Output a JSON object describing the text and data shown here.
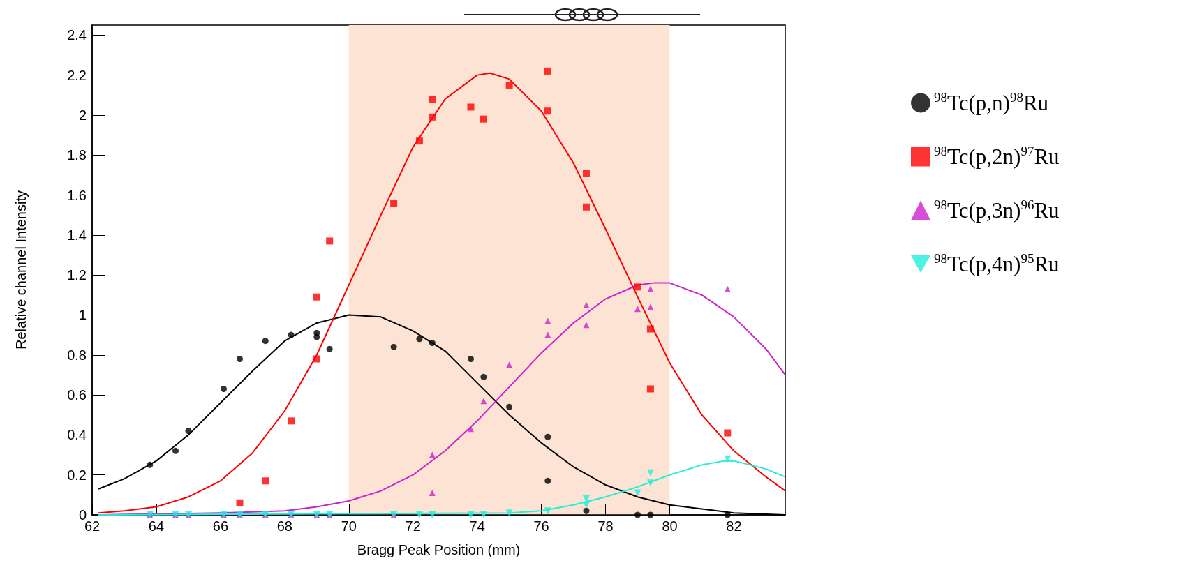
{
  "chart_data": {
    "type": "scatter",
    "xlabel": "Bragg Peak Position (mm)",
    "ylabel": "Relative channel Intensity",
    "xlim": [
      62,
      83.6
    ],
    "xticks": [
      62,
      64,
      66,
      68,
      70,
      72,
      74,
      76,
      78,
      80,
      82
    ],
    "ylim": [
      0,
      2.45
    ],
    "yticks": [
      0,
      0.2,
      0.4,
      0.6,
      0.8,
      1,
      1.2,
      1.4,
      1.6,
      1.8,
      2,
      2.2,
      2.4
    ],
    "legend": "right",
    "bands": [
      {
        "axis": "x",
        "from": 70,
        "to": 80,
        "color": "#fde3d3"
      }
    ],
    "series": [
      {
        "name": "$^{98}$Tc(p,n)$^{98}$Ru",
        "color": "#000000",
        "marker": "circle",
        "x": [
          63.8,
          64.6,
          65,
          66.1,
          66.6,
          67.4,
          68.2,
          69,
          69,
          69.4,
          71.4,
          72.2,
          72.6,
          73.8,
          74.2,
          75,
          76.2,
          76.2,
          77.4,
          79,
          79.4,
          81.8
        ],
        "values": [
          0.25,
          0.32,
          0.42,
          0.63,
          0.78,
          0.87,
          0.9,
          0.91,
          0.89,
          0.83,
          0.84,
          0.88,
          0.86,
          0.78,
          0.69,
          0.54,
          0.39,
          0.17,
          0.02,
          0,
          0,
          0
        ]
      },
      {
        "name": "$^{98}$Tc(p,2n)$^{97}$Ru",
        "color": "#ff0000",
        "marker": "square",
        "x": [
          66.6,
          67.4,
          68.2,
          69,
          69,
          69.4,
          71.4,
          72.2,
          72.6,
          72.6,
          73.8,
          74.2,
          75,
          76.2,
          76.2,
          77.4,
          77.4,
          79,
          79.4,
          79.4,
          81.8
        ],
        "values": [
          0.06,
          0.17,
          0.47,
          1.09,
          0.78,
          1.37,
          1.56,
          1.87,
          2.08,
          1.99,
          2.04,
          1.98,
          2.15,
          2.22,
          2.02,
          1.71,
          1.54,
          1.14,
          0.93,
          0.63,
          0.41
        ]
      },
      {
        "name": "$^{98}$Tc(p,3n)$^{96}$Ru",
        "color": "#cc22cc",
        "marker": "triangle",
        "x": [
          63.8,
          64.6,
          65,
          66.1,
          66.6,
          67.4,
          68.2,
          69,
          69.4,
          71.4,
          72.2,
          72.6,
          72.6,
          73.8,
          74.2,
          75,
          76.2,
          76.2,
          77.4,
          77.4,
          79,
          79.4,
          79.4,
          81.8
        ],
        "values": [
          0,
          0,
          0,
          0,
          0,
          0,
          0,
          0,
          0,
          0,
          null,
          0.3,
          0.11,
          0.43,
          0.57,
          0.75,
          0.97,
          0.9,
          1.05,
          0.95,
          1.03,
          1.13,
          1.04,
          1.13
        ]
      },
      {
        "name": "$^{98}$Tc(p,4n)$^{95}$Ru",
        "color": "#22eedd",
        "marker": "triangle-down",
        "x": [
          63.8,
          64.6,
          65,
          66.1,
          66.6,
          67.4,
          68.2,
          69,
          69.4,
          71.4,
          72.2,
          72.6,
          73.8,
          74.2,
          75,
          76.2,
          77.4,
          77.4,
          79,
          79.4,
          79.4,
          81.8
        ],
        "values": [
          0,
          0,
          0,
          0,
          0,
          0,
          0,
          0,
          0,
          0,
          0,
          0,
          0,
          0,
          0.01,
          0.02,
          0.08,
          0.05,
          0.11,
          0.21,
          0.16,
          0.28
        ]
      },
      {
        "type": "line",
        "color": "#000000",
        "marker": "none",
        "x": [
          62.2,
          63,
          64,
          65,
          66,
          67,
          68,
          69,
          70,
          71,
          72,
          73,
          74,
          75,
          76,
          77,
          78,
          79,
          80,
          81,
          82,
          83.6
        ],
        "values": [
          0.13,
          0.18,
          0.27,
          0.4,
          0.56,
          0.72,
          0.87,
          0.96,
          1,
          0.99,
          0.92,
          0.82,
          0.66,
          0.5,
          0.36,
          0.24,
          0.15,
          0.09,
          0.05,
          0.03,
          0.01,
          0
        ]
      },
      {
        "type": "line",
        "color": "#ff0000",
        "marker": "none",
        "x": [
          62.2,
          63,
          64,
          65,
          66,
          67,
          68,
          69,
          70,
          71,
          72,
          73,
          74,
          74.4,
          75,
          76,
          77,
          78,
          79,
          80,
          81,
          82,
          83,
          83.6
        ],
        "values": [
          0.01,
          0.02,
          0.04,
          0.09,
          0.17,
          0.31,
          0.52,
          0.8,
          1.15,
          1.5,
          1.84,
          2.08,
          2.2,
          2.21,
          2.18,
          2.02,
          1.76,
          1.43,
          1.09,
          0.76,
          0.5,
          0.32,
          0.19,
          0.12
        ]
      },
      {
        "type": "line",
        "color": "#cc22cc",
        "marker": "none",
        "x": [
          62.2,
          66,
          68,
          69,
          70,
          71,
          72,
          73,
          74,
          75,
          76,
          77,
          78,
          79,
          79.5,
          80,
          81,
          82,
          83,
          83.6
        ],
        "values": [
          0,
          0.01,
          0.02,
          0.04,
          0.07,
          0.12,
          0.2,
          0.32,
          0.47,
          0.64,
          0.81,
          0.96,
          1.08,
          1.15,
          1.16,
          1.16,
          1.1,
          0.99,
          0.83,
          0.7
        ]
      },
      {
        "type": "line",
        "color": "#22eedd",
        "marker": "none",
        "x": [
          62.2,
          75,
          76,
          77,
          78,
          79,
          80,
          81,
          81.7,
          82,
          83,
          83.6
        ],
        "values": [
          0,
          0.01,
          0.02,
          0.05,
          0.09,
          0.14,
          0.2,
          0.25,
          0.27,
          0.27,
          0.23,
          0.19
        ]
      }
    ]
  }
}
